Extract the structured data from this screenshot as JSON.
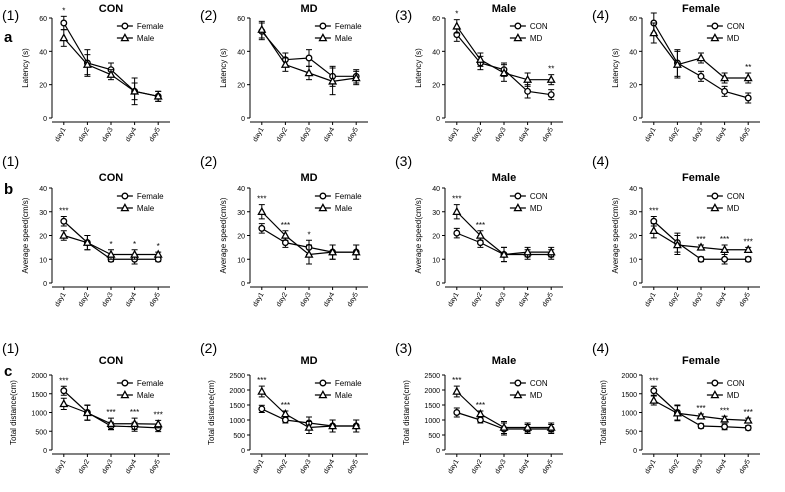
{
  "figure": {
    "row_labels": [
      "a",
      "b",
      "c"
    ],
    "panel_numbers": [
      "(1)",
      "(2)",
      "(3)",
      "(4)"
    ]
  },
  "style": {
    "line_color": "#000000",
    "background": "#ffffff"
  },
  "chart_data": [
    {
      "type": "line",
      "row": "a",
      "panel": "(1)",
      "title": "CON",
      "ylabel": "Latency (s)",
      "ylim": [
        0,
        60
      ],
      "yticks": [
        0,
        20,
        40,
        60
      ],
      "categories": [
        "day1",
        "day2",
        "day3",
        "day4",
        "day5"
      ],
      "series": [
        {
          "name": "Female",
          "marker": "circle",
          "values": [
            57,
            33,
            29,
            16,
            13
          ],
          "errors": [
            4,
            8,
            4,
            5,
            3
          ]
        },
        {
          "name": "Male",
          "marker": "triangle",
          "values": [
            48,
            32,
            26,
            16,
            13
          ],
          "errors": [
            5,
            6,
            3,
            8,
            3
          ]
        }
      ],
      "annotations": [
        {
          "category": "day1",
          "text": "*"
        }
      ]
    },
    {
      "type": "line",
      "row": "a",
      "panel": "(2)",
      "title": "MD",
      "ylabel": "Latency (s)",
      "ylim": [
        0,
        60
      ],
      "yticks": [
        0,
        20,
        40,
        60
      ],
      "categories": [
        "day1",
        "day2",
        "day3",
        "day4",
        "day5"
      ],
      "series": [
        {
          "name": "Female",
          "marker": "circle",
          "values": [
            52,
            35,
            36,
            25,
            25
          ],
          "errors": [
            5,
            4,
            5,
            6,
            4
          ]
        },
        {
          "name": "Male",
          "marker": "triangle",
          "values": [
            53,
            32,
            27,
            22,
            24
          ],
          "errors": [
            5,
            4,
            4,
            8,
            4
          ]
        }
      ],
      "annotations": []
    },
    {
      "type": "line",
      "row": "a",
      "panel": "(3)",
      "title": "Male",
      "ylabel": "Latency (s)",
      "ylim": [
        0,
        60
      ],
      "yticks": [
        0,
        20,
        40,
        60
      ],
      "categories": [
        "day1",
        "day2",
        "day3",
        "day4",
        "day5"
      ],
      "series": [
        {
          "name": "CON",
          "marker": "circle",
          "values": [
            50,
            33,
            29,
            16,
            14
          ],
          "errors": [
            4,
            4,
            4,
            4,
            3
          ]
        },
        {
          "name": "MD",
          "marker": "triangle",
          "values": [
            55,
            35,
            27,
            23,
            23
          ],
          "errors": [
            4,
            4,
            5,
            4,
            3
          ]
        }
      ],
      "annotations": [
        {
          "category": "day1",
          "text": "*"
        },
        {
          "category": "day5",
          "text": "**"
        }
      ]
    },
    {
      "type": "line",
      "row": "a",
      "panel": "(4)",
      "title": "Female",
      "ylabel": "Latency (s)",
      "ylim": [
        0,
        60
      ],
      "yticks": [
        0,
        20,
        40,
        60
      ],
      "categories": [
        "day1",
        "day2",
        "day3",
        "day4",
        "day5"
      ],
      "series": [
        {
          "name": "CON",
          "marker": "circle",
          "values": [
            57,
            33,
            25,
            16,
            12
          ],
          "errors": [
            6,
            8,
            3,
            3,
            3
          ]
        },
        {
          "name": "MD",
          "marker": "triangle",
          "values": [
            51,
            32,
            36,
            24,
            24
          ],
          "errors": [
            6,
            8,
            3,
            3,
            3
          ]
        }
      ],
      "annotations": [
        {
          "category": "day5",
          "text": "**"
        }
      ]
    },
    {
      "type": "line",
      "row": "b",
      "panel": "(1)",
      "title": "CON",
      "ylabel": "Average speed(cm/s)",
      "ylim": [
        0,
        40
      ],
      "yticks": [
        0,
        10,
        20,
        30,
        40
      ],
      "categories": [
        "day1",
        "day2",
        "day3",
        "day4",
        "day5"
      ],
      "series": [
        {
          "name": "Female",
          "marker": "circle",
          "values": [
            26,
            17,
            10,
            10,
            10
          ],
          "errors": [
            2,
            3,
            1,
            2,
            1
          ]
        },
        {
          "name": "Male",
          "marker": "triangle",
          "values": [
            20,
            17,
            12,
            12,
            12
          ],
          "errors": [
            2,
            3,
            2,
            2,
            1
          ]
        }
      ],
      "annotations": [
        {
          "category": "day1",
          "text": "***"
        },
        {
          "category": "day3",
          "text": "*"
        },
        {
          "category": "day4",
          "text": "*"
        },
        {
          "category": "day5",
          "text": "*"
        }
      ]
    },
    {
      "type": "line",
      "row": "b",
      "panel": "(2)",
      "title": "MD",
      "ylabel": "Average speed(cm/s)",
      "ylim": [
        0,
        40
      ],
      "yticks": [
        0,
        10,
        20,
        30,
        40
      ],
      "categories": [
        "day1",
        "day2",
        "day3",
        "day4",
        "day5"
      ],
      "series": [
        {
          "name": "Female",
          "marker": "circle",
          "values": [
            23,
            17,
            15,
            13,
            13
          ],
          "errors": [
            2,
            2,
            3,
            3,
            3
          ]
        },
        {
          "name": "Male",
          "marker": "triangle",
          "values": [
            30,
            20,
            12,
            13,
            13
          ],
          "errors": [
            3,
            2,
            4,
            3,
            3
          ]
        }
      ],
      "annotations": [
        {
          "category": "day1",
          "text": "***"
        },
        {
          "category": "day2",
          "text": "***"
        },
        {
          "category": "day3",
          "text": "*"
        }
      ]
    },
    {
      "type": "line",
      "row": "b",
      "panel": "(3)",
      "title": "Male",
      "ylabel": "Average speed(cm/s)",
      "ylim": [
        0,
        40
      ],
      "yticks": [
        0,
        10,
        20,
        30,
        40
      ],
      "categories": [
        "day1",
        "day2",
        "day3",
        "day4",
        "day5"
      ],
      "series": [
        {
          "name": "CON",
          "marker": "circle",
          "values": [
            21,
            17,
            12,
            12,
            12
          ],
          "errors": [
            2,
            2,
            3,
            2,
            2
          ]
        },
        {
          "name": "MD",
          "marker": "triangle",
          "values": [
            30,
            20,
            12,
            13,
            13
          ],
          "errors": [
            3,
            2,
            3,
            2,
            2
          ]
        }
      ],
      "annotations": [
        {
          "category": "day1",
          "text": "***"
        },
        {
          "category": "day2",
          "text": "***"
        }
      ]
    },
    {
      "type": "line",
      "row": "b",
      "panel": "(4)",
      "title": "Female",
      "ylabel": "Average speed(cm/s)",
      "ylim": [
        0,
        40
      ],
      "yticks": [
        0,
        10,
        20,
        30,
        40
      ],
      "categories": [
        "day1",
        "day2",
        "day3",
        "day4",
        "day5"
      ],
      "series": [
        {
          "name": "CON",
          "marker": "circle",
          "values": [
            26,
            17,
            10,
            10,
            10
          ],
          "errors": [
            2,
            4,
            1,
            2,
            1
          ]
        },
        {
          "name": "MD",
          "marker": "triangle",
          "values": [
            22,
            16,
            15,
            14,
            14
          ],
          "errors": [
            3,
            4,
            1,
            2,
            1
          ]
        }
      ],
      "annotations": [
        {
          "category": "day1",
          "text": "***"
        },
        {
          "category": "day3",
          "text": "***"
        },
        {
          "category": "day4",
          "text": "***"
        },
        {
          "category": "day5",
          "text": "***"
        }
      ]
    },
    {
      "type": "line",
      "row": "c",
      "panel": "(1)",
      "title": "CON",
      "ylabel": "Total distance(cm)",
      "ylim": [
        0,
        2000
      ],
      "yticks": [
        0,
        500,
        1000,
        1500,
        2000
      ],
      "categories": [
        "day1",
        "day2",
        "day3",
        "day4",
        "day5"
      ],
      "series": [
        {
          "name": "Female",
          "marker": "circle",
          "values": [
            1580,
            1000,
            640,
            620,
            590
          ],
          "errors": [
            120,
            200,
            100,
            120,
            100
          ]
        },
        {
          "name": "Male",
          "marker": "triangle",
          "values": [
            1230,
            990,
            700,
            700,
            690
          ],
          "errors": [
            150,
            200,
            150,
            150,
            100
          ]
        }
      ],
      "annotations": [
        {
          "category": "day1",
          "text": "***"
        },
        {
          "category": "day3",
          "text": "***"
        },
        {
          "category": "day4",
          "text": "***"
        },
        {
          "category": "day5",
          "text": "***"
        }
      ]
    },
    {
      "type": "line",
      "row": "c",
      "panel": "(2)",
      "title": "MD",
      "ylabel": "Total distance(cm)",
      "ylim": [
        0,
        2500
      ],
      "yticks": [
        0,
        500,
        1000,
        1500,
        2000,
        2500
      ],
      "categories": [
        "day1",
        "day2",
        "day3",
        "day4",
        "day5"
      ],
      "series": [
        {
          "name": "Female",
          "marker": "circle",
          "values": [
            1370,
            1000,
            900,
            800,
            800
          ],
          "errors": [
            120,
            100,
            200,
            200,
            200
          ]
        },
        {
          "name": "Male",
          "marker": "triangle",
          "values": [
            1950,
            1200,
            750,
            800,
            800
          ],
          "errors": [
            180,
            100,
            200,
            200,
            200
          ]
        }
      ],
      "annotations": [
        {
          "category": "day1",
          "text": "***"
        },
        {
          "category": "day2",
          "text": "***"
        }
      ]
    },
    {
      "type": "line",
      "row": "c",
      "panel": "(3)",
      "title": "Male",
      "ylabel": "Total distance(cm)",
      "ylim": [
        0,
        2500
      ],
      "yticks": [
        0,
        500,
        1000,
        1500,
        2000,
        2500
      ],
      "categories": [
        "day1",
        "day2",
        "day3",
        "day4",
        "day5"
      ],
      "series": [
        {
          "name": "CON",
          "marker": "circle",
          "values": [
            1250,
            1000,
            700,
            700,
            700
          ],
          "errors": [
            150,
            100,
            200,
            150,
            150
          ]
        },
        {
          "name": "MD",
          "marker": "triangle",
          "values": [
            1950,
            1200,
            750,
            750,
            750
          ],
          "errors": [
            180,
            100,
            200,
            150,
            150
          ]
        }
      ],
      "annotations": [
        {
          "category": "day1",
          "text": "***"
        },
        {
          "category": "day2",
          "text": "***"
        }
      ]
    },
    {
      "type": "line",
      "row": "c",
      "panel": "(4)",
      "title": "Female",
      "ylabel": "Total distance(cm)",
      "ylim": [
        0,
        2000
      ],
      "yticks": [
        0,
        500,
        1000,
        1500,
        2000
      ],
      "categories": [
        "day1",
        "day2",
        "day3",
        "day4",
        "day5"
      ],
      "series": [
        {
          "name": "CON",
          "marker": "circle",
          "values": [
            1580,
            1000,
            640,
            620,
            590
          ],
          "errors": [
            120,
            200,
            60,
            80,
            60
          ]
        },
        {
          "name": "MD",
          "marker": "triangle",
          "values": [
            1320,
            980,
            900,
            820,
            790
          ],
          "errors": [
            120,
            200,
            60,
            80,
            60
          ]
        }
      ],
      "annotations": [
        {
          "category": "day1",
          "text": "***"
        },
        {
          "category": "day3",
          "text": "***"
        },
        {
          "category": "day4",
          "text": "***"
        },
        {
          "category": "day5",
          "text": "***"
        }
      ]
    }
  ]
}
